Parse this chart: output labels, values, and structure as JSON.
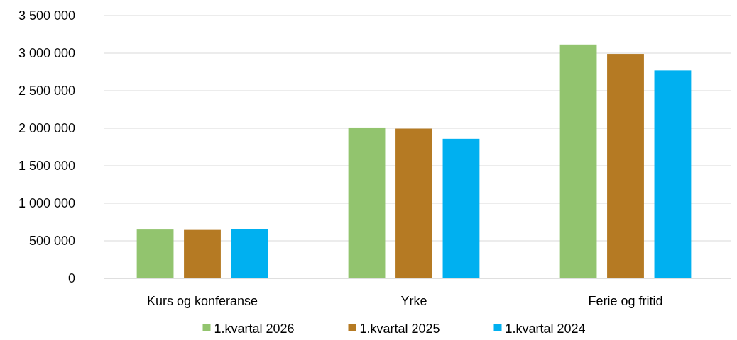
{
  "chart_data": {
    "type": "bar",
    "categories": [
      "Kurs og konferanse",
      "Yrke",
      "Ferie og fritid"
    ],
    "series": [
      {
        "name": "1.kvartal 2026",
        "color": "#92c46e",
        "values": [
          650000,
          2010000,
          3115000
        ]
      },
      {
        "name": "1.kvartal 2025",
        "color": "#b57a23",
        "values": [
          645000,
          1995000,
          2990000
        ]
      },
      {
        "name": "1.kvartal 2024",
        "color": "#00b0f0",
        "values": [
          660000,
          1860000,
          2770000
        ]
      }
    ],
    "ylim": [
      0,
      3500000
    ],
    "yticks": [
      {
        "value": 0,
        "label": "0"
      },
      {
        "value": 500000,
        "label": "500 000"
      },
      {
        "value": 1000000,
        "label": "1 000 000"
      },
      {
        "value": 1500000,
        "label": "1 500 000"
      },
      {
        "value": 2000000,
        "label": "2 000 000"
      },
      {
        "value": 2500000,
        "label": "2 500 000"
      },
      {
        "value": 3000000,
        "label": "3 000 000"
      },
      {
        "value": 3500000,
        "label": "3 500 000"
      }
    ],
    "grid": "y",
    "legend": "bottom"
  }
}
